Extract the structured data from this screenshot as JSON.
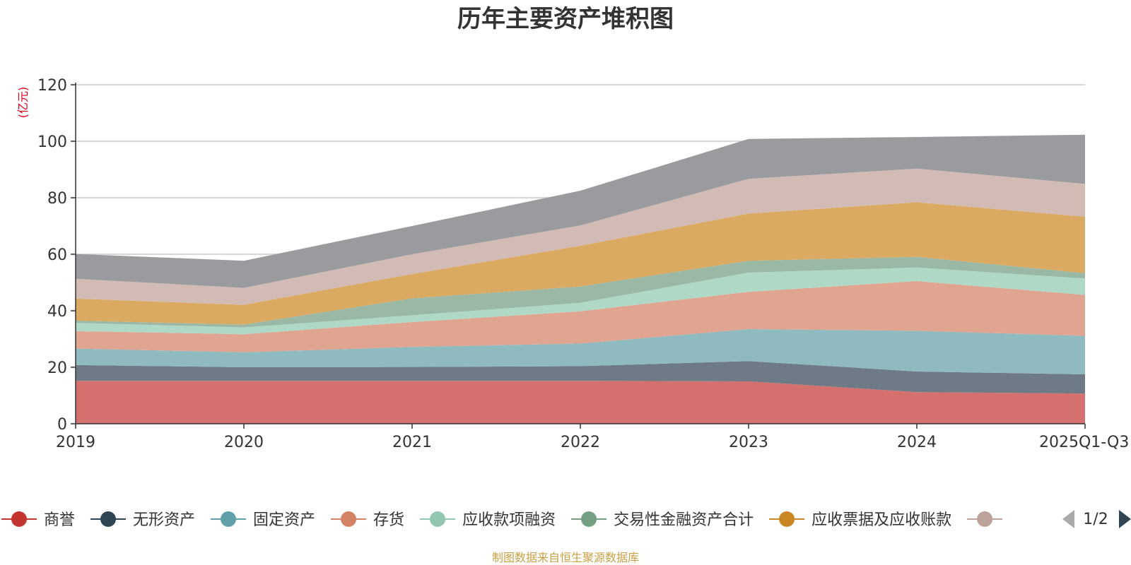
{
  "chart_data": {
    "type": "area",
    "stacked": true,
    "title": "历年主要资产堆积图",
    "unit_label": "(亿元)",
    "ylim": [
      0,
      120
    ],
    "yticks": [
      "0",
      "20",
      "40",
      "60",
      "80",
      "100",
      "120"
    ],
    "categories": [
      "2019",
      "2020",
      "2021",
      "2022",
      "2023",
      "2024",
      "2025Q1-Q3"
    ],
    "series": [
      {
        "name": "商誉",
        "color": "#d4706d",
        "legend_color": "#c23531",
        "values": [
          15.2,
          15.2,
          15.2,
          15.2,
          15.0,
          11.2,
          10.7
        ]
      },
      {
        "name": "无形资产",
        "color": "#6e7b87",
        "legend_color": "#2f4554",
        "values": [
          5.6,
          4.8,
          4.9,
          5.2,
          7.2,
          7.3,
          6.8
        ]
      },
      {
        "name": "固定资产",
        "color": "#8fbac0",
        "legend_color": "#61a0a8",
        "values": [
          5.8,
          5.3,
          7.1,
          8.0,
          11.3,
          14.4,
          13.6
        ]
      },
      {
        "name": "存货",
        "color": "#e0a590",
        "legend_color": "#d48265",
        "values": [
          6.2,
          6.4,
          8.8,
          11.4,
          13.2,
          17.6,
          14.5
        ]
      },
      {
        "name": "应收款项融资",
        "color": "#b0d8c6",
        "legend_color": "#91c7ae",
        "values": [
          2.9,
          2.4,
          2.4,
          3.0,
          6.8,
          4.8,
          5.8
        ]
      },
      {
        "name": "交易性金融资产合计",
        "color": "#9bb8a4",
        "legend_color": "#749f83",
        "values": [
          0.8,
          1.0,
          6.0,
          5.8,
          4.2,
          3.8,
          1.9
        ]
      },
      {
        "name": "应收票据及应收账款",
        "color": "#dbaa62",
        "legend_color": "#ca8622",
        "values": [
          7.8,
          7.0,
          8.6,
          14.4,
          16.7,
          19.3,
          20.0
        ]
      },
      {
        "name": "",
        "color": "#d2bbb5",
        "legend_color": "#bda29a",
        "values": [
          7.0,
          6.0,
          7.0,
          7.2,
          12.3,
          11.9,
          11.6
        ]
      },
      {
        "name": "",
        "color": "#9a9b9e",
        "values": [
          8.8,
          9.6,
          10.0,
          12.3,
          14.1,
          11.2,
          17.4
        ]
      }
    ]
  },
  "legend": {
    "page": "1/2"
  },
  "footer": {
    "source": "制图数据来自恒生聚源数据库"
  }
}
